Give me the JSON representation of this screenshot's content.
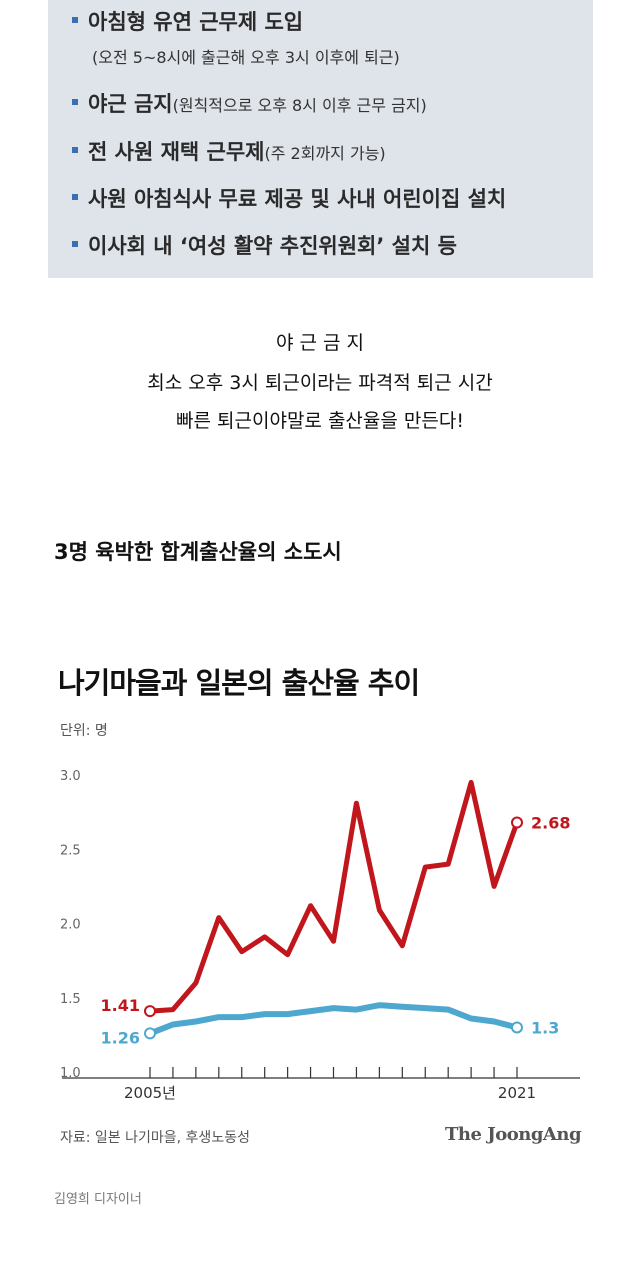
{
  "box": {
    "items": [
      {
        "main": "아침형 유연 근무제 도입",
        "note": ""
      },
      {
        "main": "야근 금지",
        "note": "(원칙적으로 오후 8시 이후 근무 금지)"
      },
      {
        "main": "전 사원 재택 근무제",
        "note": "(주 2회까지 가능)"
      },
      {
        "main": "사원 아침식사 무료 제공 및 사내 어린이집 설치",
        "note": ""
      },
      {
        "main": "이사회 내 ‘여성 활약 추진위원회’ 설치 등",
        "note": ""
      }
    ],
    "sub_note": "(오전 5~8시에 출근해 오후 3시 이후에 퇴근)"
  },
  "caption": {
    "line1": "야 근 금 지",
    "line2": "최소 오후 3시 퇴근이라는 파격적 퇴근 시간",
    "line3": "빠른 퇴근이야말로 출산율을 만든다!"
  },
  "section_title": "3명 육박한 합계출산율의 소도시",
  "chart_data": {
    "type": "line",
    "title": "나기마을과 일본의 출산율 추이",
    "unit": "단위: 명",
    "xlabel": "",
    "ylabel": "",
    "x_start": 2005,
    "x_end": 2021,
    "x_tick_labels": [
      "2005년",
      "2021"
    ],
    "y_ticks": [
      "1.0",
      "1.5",
      "2.0",
      "2.5",
      "3.0"
    ],
    "ylim": [
      1.0,
      3.0
    ],
    "series": [
      {
        "color": "#c0161c",
        "values": [
          1.41,
          1.42,
          1.6,
          2.04,
          1.81,
          1.91,
          1.79,
          2.12,
          1.88,
          2.81,
          2.09,
          1.85,
          2.38,
          2.4,
          2.95,
          2.25,
          2.68
        ],
        "start_label": "1.41",
        "end_label": "2.68"
      },
      {
        "color": "#4ea7cf",
        "values": [
          1.26,
          1.32,
          1.34,
          1.37,
          1.37,
          1.39,
          1.39,
          1.41,
          1.43,
          1.42,
          1.45,
          1.44,
          1.43,
          1.42,
          1.36,
          1.34,
          1.3
        ],
        "start_label": "1.26",
        "end_label": "1.3"
      }
    ],
    "grid": false,
    "source": "자료: 일본 나기마을, 후생노동성"
  },
  "brand": "The JoongAng",
  "designer": "김영희 디자이너"
}
